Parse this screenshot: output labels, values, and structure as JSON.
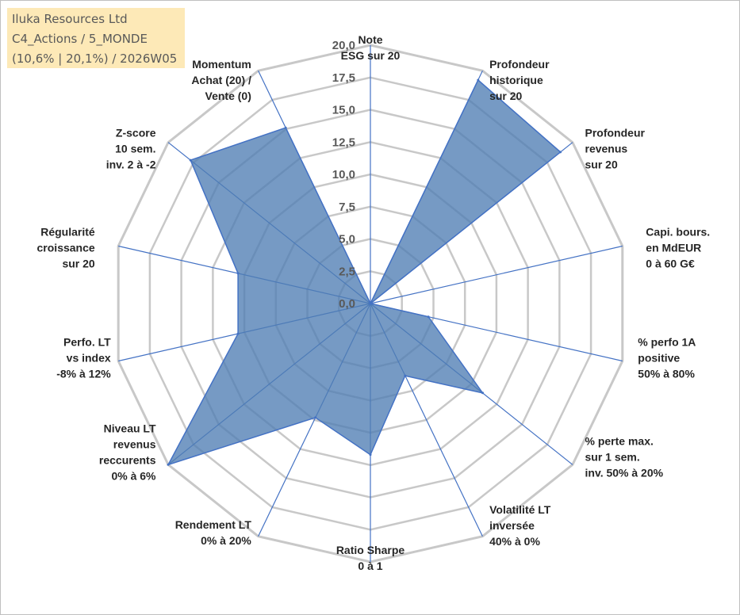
{
  "info": {
    "line1": "Iluka Resources Ltd",
    "line2": "C4_Actions / 5_MONDE",
    "line3": "(10,6% | 20,1%) / 2026W05"
  },
  "colors": {
    "grid": "#c8c8c8",
    "axis": "#4472c4",
    "fill": "#4f7db3",
    "stroke": "#4472c4"
  },
  "chart_data": {
    "type": "radar",
    "title": "",
    "scale": {
      "min": 0,
      "max": 20,
      "step": 2.5
    },
    "tick_labels": [
      "0,0",
      "2,5",
      "5,0",
      "7,5",
      "10,0",
      "12,5",
      "15,0",
      "17,5",
      "20,0"
    ],
    "axes": [
      {
        "label": [
          "Note",
          "ESG sur 20"
        ],
        "value": 0
      },
      {
        "label": [
          "Profondeur",
          "historique",
          "sur 20"
        ],
        "value": 19.2
      },
      {
        "label": [
          "Profondeur",
          "revenus",
          "sur 20"
        ],
        "value": 18.8
      },
      {
        "label": [
          "Capi. bours.",
          "en MdEUR",
          "0 à 60 G€"
        ],
        "value": 0
      },
      {
        "label": [
          "% perfo 1A",
          "positive",
          "50% à 80%"
        ],
        "value": 4.6
      },
      {
        "label": [
          "% perte max.",
          "sur 1 sem.",
          "inv. 50% à 20%"
        ],
        "value": 11.1
      },
      {
        "label": [
          "Volatilité LT",
          "inversée",
          "40% à 0%"
        ],
        "value": 6.2
      },
      {
        "label": [
          "Ratio Sharpe",
          "0 à 1"
        ],
        "value": 11.7
      },
      {
        "label": [
          "Rendement LT",
          "0% à 20%"
        ],
        "value": 9.8
      },
      {
        "label": [
          "Niveau LT",
          "revenus",
          "reccurents",
          "0% à 6%"
        ],
        "value": 20
      },
      {
        "label": [
          "Perfo. LT",
          "vs index",
          "-8% à 12%"
        ],
        "value": 10.5
      },
      {
        "label": [
          "Régularité",
          "croissance",
          "sur 20"
        ],
        "value": 10.5
      },
      {
        "label": [
          "Z-score",
          "10 sem.",
          "inv. 2 à -2"
        ],
        "value": 17.8
      },
      {
        "label": [
          "Momentum",
          "Achat (20) /",
          "Vente (0)"
        ],
        "value": 15.1
      }
    ]
  }
}
